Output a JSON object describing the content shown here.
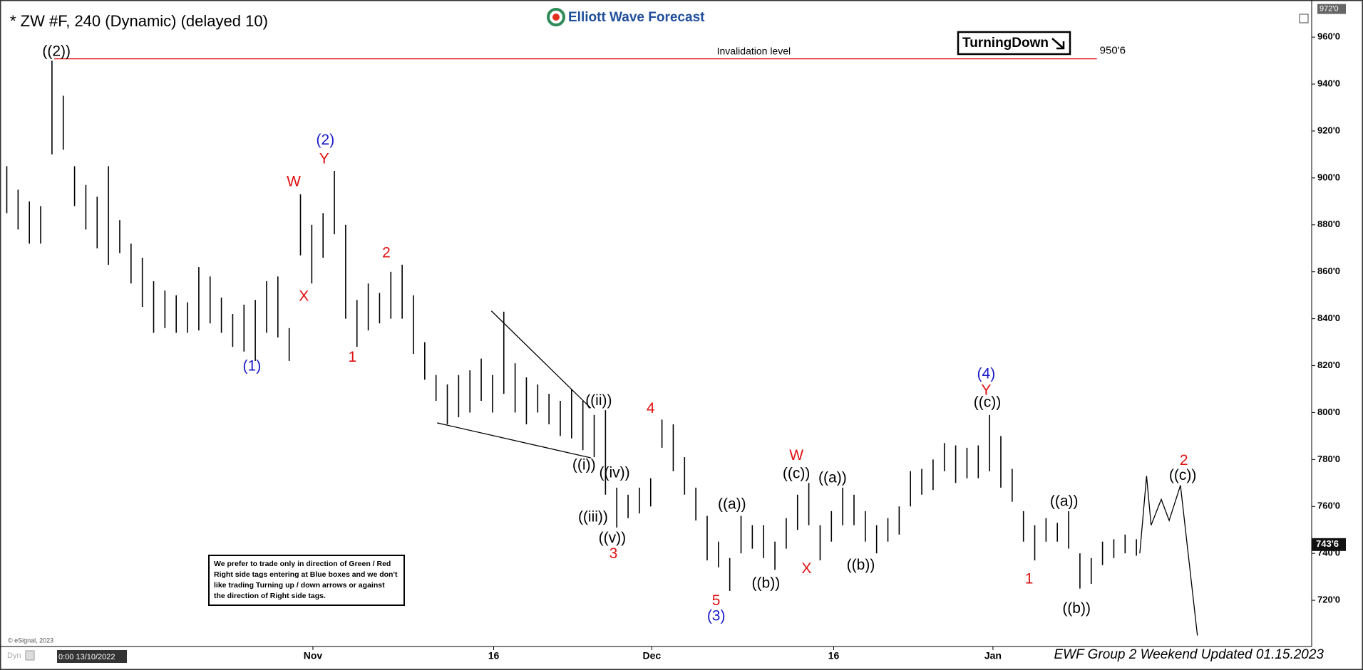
{
  "header": {
    "logo": "Elliott Wave Forecast",
    "tag": "TurningDown",
    "notice": [
      "We prefer to trade only in direction of Green / Red",
      "Right side tags entering at Blue boxes and we don't",
      "like trading Turning up / down arrows or against",
      "the direction of Right side tags."
    ],
    "footer": "EWF Group 2 Weekend Updated 01.15.2023",
    "copyright": "© eSignal, 2023",
    "mode": "Dyn",
    "cursor_time": "0:00 13/10/2022"
  },
  "chart_data": {
    "type": "ohlc",
    "title": "* ZW #F, 240 (Dynamic) (delayed 10)",
    "color": "#000000",
    "xlim": [
      -0.6,
      115.2
    ],
    "ylim": [
      700.3,
      973.4
    ],
    "xticks": [
      {
        "value": 27.1,
        "label": "Nov"
      },
      {
        "value": 43.1,
        "label": "16"
      },
      {
        "value": 57.1,
        "label": "Dec"
      },
      {
        "value": 73.2,
        "label": "16"
      },
      {
        "value": 87.3,
        "label": "Jan"
      }
    ],
    "yticks": [
      {
        "value": 720,
        "label": "720'0"
      },
      {
        "value": 740,
        "label": "740'0"
      },
      {
        "value": 760,
        "label": "760'0"
      },
      {
        "value": 780,
        "label": "780'0"
      },
      {
        "value": 800,
        "label": "800'0"
      },
      {
        "value": 820,
        "label": "820'0"
      },
      {
        "value": 840,
        "label": "840'0"
      },
      {
        "value": 860,
        "label": "860'0"
      },
      {
        "value": 880,
        "label": "880'0"
      },
      {
        "value": 900,
        "label": "900'0"
      },
      {
        "value": 920,
        "label": "920'0"
      },
      {
        "value": 940,
        "label": "940'0"
      },
      {
        "value": 960,
        "label": "960'0"
      }
    ],
    "high": [
      905,
      895,
      890,
      888,
      950,
      935,
      905,
      897,
      892,
      905,
      882,
      872,
      866,
      856,
      852,
      850,
      847,
      862,
      858,
      849,
      842,
      846,
      848,
      856,
      858,
      836,
      893,
      880,
      885,
      903,
      880,
      848,
      855,
      851,
      860,
      863,
      850,
      830,
      816,
      812,
      816,
      818,
      823,
      816,
      843,
      821,
      815,
      812,
      808,
      805,
      810,
      805,
      799,
      801,
      768,
      765,
      768,
      772,
      797,
      795,
      781,
      768,
      756,
      745,
      738,
      756,
      752,
      752,
      745,
      755,
      765,
      770,
      752,
      758,
      768,
      765,
      758,
      752,
      755,
      760,
      775,
      776,
      780,
      787,
      786,
      785,
      786,
      799,
      790,
      776,
      758,
      752,
      755,
      753,
      758,
      740,
      738,
      745,
      746,
      748,
      746
    ],
    "low": [
      885,
      878,
      872,
      872,
      910,
      912,
      888,
      878,
      870,
      863,
      868,
      855,
      845,
      834,
      836,
      834,
      834,
      835,
      838,
      834,
      828,
      826,
      822,
      834,
      832,
      822,
      867,
      855,
      866,
      876,
      840,
      828,
      835,
      838,
      840,
      840,
      825,
      814,
      805,
      795,
      798,
      800,
      805,
      800,
      808,
      800,
      795,
      800,
      795,
      790,
      789,
      784,
      781,
      765,
      751,
      755,
      757,
      760,
      785,
      775,
      765,
      754,
      737,
      734,
      724,
      740,
      742,
      738,
      733,
      742,
      750,
      752,
      737,
      745,
      752,
      752,
      745,
      740,
      745,
      748,
      760,
      765,
      767,
      775,
      770,
      772,
      772,
      775,
      768,
      762,
      745,
      737,
      745,
      745,
      742,
      725,
      727,
      735,
      738,
      740,
      739
    ],
    "last_price": {
      "value": 743.75,
      "label": "743'6"
    },
    "top_price": {
      "value": 972,
      "label": "972'0"
    },
    "invalidation": {
      "text": "Invalidation level",
      "value": 950.75,
      "label": "950'6",
      "color": "#e00000",
      "x": [
        4.2,
        96.5
      ]
    },
    "trendlines": [
      {
        "x": [
          42.9,
          51.7
        ],
        "y": [
          843.3,
          801.9
        ]
      },
      {
        "x": [
          38.1,
          51.7
        ],
        "y": [
          795.6,
          780.7
        ]
      }
    ],
    "projection": {
      "x": [
        100.3,
        100.9,
        101.3,
        102.2,
        102.9,
        103.9,
        105.4
      ],
      "y": [
        740,
        773,
        752,
        763,
        754,
        769,
        705
      ]
    },
    "annotations": [
      {
        "text": "((2))",
        "x": 4.4,
        "y": 953.7,
        "color": "#000000"
      },
      {
        "text": "(1)",
        "x": 21.7,
        "y": 819.6,
        "color": "#1a1ac8"
      },
      {
        "text": "W",
        "x": 25.4,
        "y": 898.1,
        "color": "#e01010"
      },
      {
        "text": "X",
        "x": 26.3,
        "y": 849.3,
        "color": "#e01010"
      },
      {
        "text": "(2)",
        "x": 28.2,
        "y": 915.9,
        "color": "#1a1ac8"
      },
      {
        "text": "Y",
        "x": 28.1,
        "y": 907.8,
        "color": "#e01010"
      },
      {
        "text": "2",
        "x": 33.6,
        "y": 867.8,
        "color": "#e01010"
      },
      {
        "text": "1",
        "x": 30.6,
        "y": 823.3,
        "color": "#e01010"
      },
      {
        "text": "((ii))",
        "x": 52.4,
        "y": 804.8,
        "color": "#000000"
      },
      {
        "text": "((i))",
        "x": 51.1,
        "y": 777.4,
        "color": "#000000"
      },
      {
        "text": "((iv))",
        "x": 53.8,
        "y": 774.1,
        "color": "#000000"
      },
      {
        "text": "((iii))",
        "x": 51.9,
        "y": 755.2,
        "color": "#000000"
      },
      {
        "text": "((v))",
        "x": 53.6,
        "y": 746.3,
        "color": "#000000"
      },
      {
        "text": "3",
        "x": 53.7,
        "y": 739.6,
        "color": "#e01010"
      },
      {
        "text": "4",
        "x": 57.0,
        "y": 801.5,
        "color": "#e01010"
      },
      {
        "text": "5",
        "x": 62.8,
        "y": 719.6,
        "color": "#e01010"
      },
      {
        "text": "(3)",
        "x": 62.8,
        "y": 713.0,
        "color": "#1a1ac8"
      },
      {
        "text": "((a))",
        "x": 64.2,
        "y": 760.7,
        "color": "#000000"
      },
      {
        "text": "((b))",
        "x": 67.2,
        "y": 727.0,
        "color": "#000000"
      },
      {
        "text": "W",
        "x": 69.9,
        "y": 781.5,
        "color": "#e01010"
      },
      {
        "text": "((c))",
        "x": 69.9,
        "y": 773.7,
        "color": "#000000"
      },
      {
        "text": "X",
        "x": 70.8,
        "y": 733.3,
        "color": "#e01010"
      },
      {
        "text": "((a))",
        "x": 73.1,
        "y": 771.9,
        "color": "#000000"
      },
      {
        "text": "((b))",
        "x": 75.6,
        "y": 734.8,
        "color": "#000000"
      },
      {
        "text": "(4)",
        "x": 86.7,
        "y": 816.3,
        "color": "#1a1ac8"
      },
      {
        "text": "Y",
        "x": 86.7,
        "y": 809.3,
        "color": "#e01010"
      },
      {
        "text": "((c))",
        "x": 86.8,
        "y": 804.1,
        "color": "#000000"
      },
      {
        "text": "1",
        "x": 90.5,
        "y": 728.9,
        "color": "#e01010"
      },
      {
        "text": "((a))",
        "x": 93.6,
        "y": 761.9,
        "color": "#000000"
      },
      {
        "text": "((b))",
        "x": 94.7,
        "y": 716.3,
        "color": "#000000"
      },
      {
        "text": "2",
        "x": 104.2,
        "y": 779.3,
        "color": "#e01010"
      },
      {
        "text": "((c))",
        "x": 104.1,
        "y": 773.0,
        "color": "#000000"
      }
    ]
  }
}
